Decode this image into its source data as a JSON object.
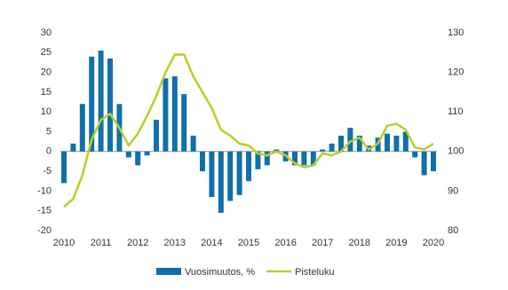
{
  "chart_data": {
    "type": "bar-line",
    "x": [
      2010,
      2010.25,
      2010.5,
      2010.75,
      2011,
      2011.25,
      2011.5,
      2011.75,
      2012,
      2012.25,
      2012.5,
      2012.75,
      2013,
      2013.25,
      2013.5,
      2013.75,
      2014,
      2014.25,
      2014.5,
      2014.75,
      2015,
      2015.25,
      2015.5,
      2015.75,
      2016,
      2016.25,
      2016.5,
      2016.75,
      2017,
      2017.25,
      2017.5,
      2017.75,
      2018,
      2018.25,
      2018.5,
      2018.75,
      2019,
      2019.25,
      2019.5,
      2019.75,
      2020
    ],
    "series": [
      {
        "name": "Vuosimuutos, %",
        "type": "bar",
        "color": "#1170aa",
        "values": [
          -8,
          2,
          12,
          24,
          25.5,
          23.5,
          12,
          -1.5,
          -3.5,
          -1,
          8,
          18.5,
          19,
          14.5,
          4,
          -5,
          -11.5,
          -15.5,
          -12.5,
          -11,
          -7.5,
          -4.5,
          -3.5,
          0.5,
          -2.5,
          -3.5,
          -3.5,
          -3.5,
          0.5,
          2,
          4,
          6,
          4,
          1.5,
          3.5,
          4.5,
          4,
          5,
          -1.5,
          -6,
          -5
        ]
      },
      {
        "name": "Pisteluku",
        "type": "line",
        "axis": "y2",
        "color": "#b5cf2b",
        "values": [
          86,
          88,
          94,
          103,
          108,
          109.5,
          106,
          101.5,
          104.5,
          109,
          114,
          120,
          124.5,
          124.5,
          119,
          115,
          111,
          105.5,
          104,
          102,
          101.5,
          99.5,
          99,
          100,
          99,
          97,
          96,
          96.5,
          99.5,
          99,
          100,
          102.5,
          103.5,
          100.5,
          102,
          106.5,
          107,
          105.5,
          101,
          100.5,
          102
        ]
      }
    ],
    "xlim": [
      2010,
      2020
    ],
    "xticks": [
      2010,
      2011,
      2012,
      2013,
      2014,
      2015,
      2016,
      2017,
      2018,
      2019,
      2020
    ],
    "ylim": [
      -20,
      30
    ],
    "yticks": [
      -20,
      -15,
      -10,
      -5,
      0,
      5,
      10,
      15,
      20,
      25,
      30
    ],
    "y2lim": [
      80,
      130
    ],
    "y2ticks": [
      80,
      90,
      100,
      110,
      120,
      130
    ],
    "legend": "bottom"
  }
}
